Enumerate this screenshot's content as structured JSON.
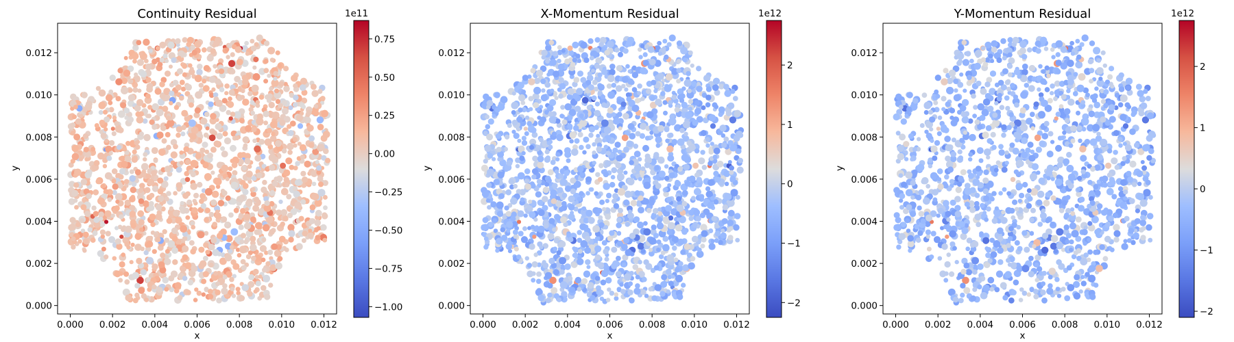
{
  "chart_data": [
    {
      "type": "scatter",
      "title": "Continuity Residual",
      "xlabel": "x",
      "ylabel": "y",
      "xlim": [
        -0.0006,
        0.0126
      ],
      "ylim": [
        -0.0004,
        0.0134
      ],
      "xticks": [
        "0.000",
        "0.002",
        "0.004",
        "0.006",
        "0.008",
        "0.010",
        "0.012"
      ],
      "yticks": [
        "0.000",
        "0.002",
        "0.004",
        "0.006",
        "0.008",
        "0.010",
        "0.012"
      ],
      "colorbar": {
        "colormap": "coolwarm",
        "range": [
          -1.07,
          0.87
        ],
        "ticks": [
          "0.75",
          "0.50",
          "0.25",
          "0.00",
          "−0.25",
          "−0.50",
          "−0.75",
          "−1.00"
        ],
        "exponent": "1e11"
      },
      "bias": 0.58,
      "spread": 0.11
    },
    {
      "type": "scatter",
      "title": "X-Momentum Residual",
      "xlabel": "x",
      "ylabel": "y",
      "xlim": [
        -0.0006,
        0.0126
      ],
      "ylim": [
        -0.0004,
        0.0134
      ],
      "xticks": [
        "0.000",
        "0.002",
        "0.004",
        "0.006",
        "0.008",
        "0.010",
        "0.012"
      ],
      "yticks": [
        "0.000",
        "0.002",
        "0.004",
        "0.006",
        "0.008",
        "0.010",
        "0.012"
      ],
      "colorbar": {
        "colormap": "coolwarm",
        "range": [
          -2.25,
          2.75
        ],
        "ticks": [
          "2",
          "1",
          "0",
          "−1",
          "−2"
        ],
        "exponent": "1e12"
      },
      "bias": 0.38,
      "spread": 0.13
    },
    {
      "type": "scatter",
      "title": "Y-Momentum Residual",
      "xlabel": "x",
      "ylabel": "y",
      "xlim": [
        -0.0006,
        0.0126
      ],
      "ylim": [
        -0.0004,
        0.0134
      ],
      "xticks": [
        "0.000",
        "0.002",
        "0.004",
        "0.006",
        "0.008",
        "0.010",
        "0.012"
      ],
      "yticks": [
        "0.000",
        "0.002",
        "0.004",
        "0.006",
        "0.008",
        "0.010",
        "0.012"
      ],
      "colorbar": {
        "colormap": "coolwarm",
        "range": [
          -2.1,
          2.75
        ],
        "ticks": [
          "2",
          "1",
          "0",
          "−1",
          "−2"
        ],
        "exponent": "1e12"
      },
      "bias": 0.37,
      "spread": 0.14
    }
  ]
}
